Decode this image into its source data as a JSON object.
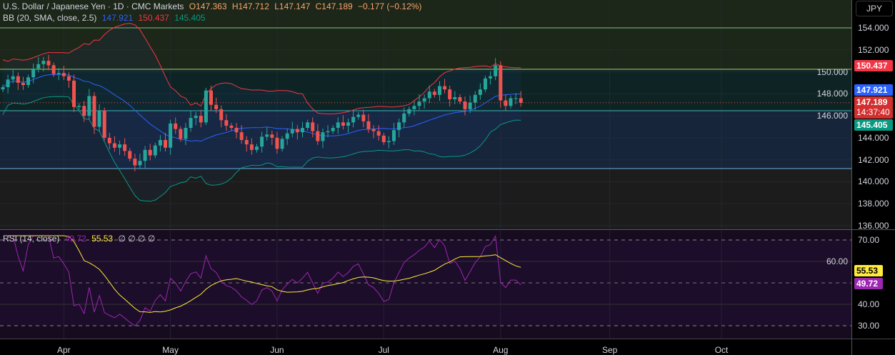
{
  "header": {
    "symbol": "U.S. Dollar / Japanese Yen · 1D · CMC Markets",
    "o": "O147.363",
    "h": "H147.712",
    "l": "L147.147",
    "c": "C147.189",
    "chg": "−0.177 (−0.12%)"
  },
  "bb_legend": {
    "name": "BB (20, SMA, close, 2.5)",
    "basis": "147.921",
    "upper": "150.437",
    "lower": "145.405"
  },
  "rsi_legend": {
    "name": "RSI (14, close)",
    "rsi": "49.72",
    "ma": "55.53",
    "extra": "∅ ∅ ∅ ∅"
  },
  "currency": "JPY",
  "price_labels": {
    "upper": "150.437",
    "basis": "147.921",
    "last": "147.189",
    "countdown": "14:37:40",
    "lower": "145.405"
  },
  "rsi_labels": {
    "ma": "55.53",
    "rsi": "49.72"
  },
  "colors": {
    "up": "#26a69a",
    "down": "#ef5350",
    "upper": "#f23645",
    "basis": "#2962ff",
    "lower": "#089981",
    "rsi": "#9c27b0",
    "ma": "#ffeb3b"
  },
  "chart_data": {
    "type": "candlestick",
    "price_ticks": [
      "154.000",
      "152.000",
      "150.000",
      "148.000",
      "146.000",
      "144.000",
      "142.000",
      "140.000",
      "138.000",
      "136.000"
    ],
    "price_range": [
      136,
      154
    ],
    "rsi_ticks": [
      "70.00",
      "60.00",
      "40.00",
      "30.00"
    ],
    "rsi_range": [
      30,
      70
    ],
    "x_ticks": [
      {
        "label": "Apr",
        "bar": 12
      },
      {
        "label": "May",
        "bar": 33
      },
      {
        "label": "Jun",
        "bar": 54
      },
      {
        "label": "Jul",
        "bar": 75
      },
      {
        "label": "Aug",
        "bar": 98
      },
      {
        "label": "Sep",
        "bar": 119.5
      },
      {
        "label": "Oct",
        "bar": 141.5
      }
    ],
    "first_open": 148.4,
    "closes": [
      148.6,
      149.3,
      149.6,
      149.0,
      148.8,
      149.5,
      150.3,
      150.7,
      151.0,
      150.6,
      149.8,
      149.9,
      149.6,
      149.2,
      146.8,
      146.9,
      146.0,
      147.8,
      145.0,
      146.5,
      144.0,
      143.5,
      143.1,
      143.4,
      142.8,
      142.1,
      141.5,
      141.9,
      142.9,
      142.4,
      143.3,
      143.8,
      143.1,
      145.3,
      144.8,
      143.9,
      144.9,
      145.8,
      146.0,
      145.4,
      148.3,
      147.0,
      146.6,
      145.6,
      145.1,
      144.9,
      144.5,
      143.8,
      143.4,
      142.9,
      143.2,
      144.1,
      144.3,
      144.0,
      143.0,
      143.9,
      144.4,
      144.8,
      144.5,
      144.9,
      145.4,
      144.6,
      143.7,
      144.5,
      144.6,
      144.9,
      145.4,
      145.1,
      145.4,
      145.9,
      146.1,
      145.5,
      144.8,
      144.6,
      144.2,
      143.6,
      143.7,
      144.7,
      145.4,
      146.2,
      146.6,
      146.9,
      147.3,
      147.6,
      148.2,
      147.9,
      148.7,
      148.4,
      147.5,
      147.7,
      147.3,
      146.6,
      147.2,
      147.9,
      148.4,
      149.4,
      149.6,
      150.6,
      147.4,
      146.9,
      147.6,
      147.6,
      147.19
    ]
  }
}
